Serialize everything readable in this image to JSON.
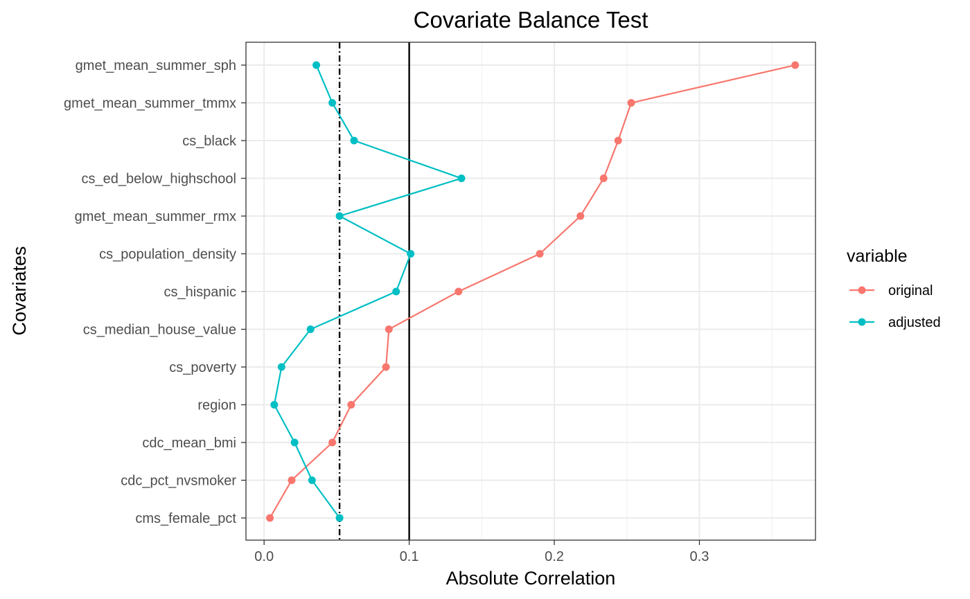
{
  "chart_data": {
    "type": "line",
    "title": "Covariate Balance Test",
    "xlabel": "Absolute Correlation",
    "ylabel": "Covariates",
    "xlim": [
      -0.0125,
      0.38
    ],
    "xticks": [
      0.0,
      0.1,
      0.2,
      0.3
    ],
    "xtick_labels": [
      "0.0",
      "0.1",
      "0.2",
      "0.3"
    ],
    "categories": [
      "gmet_mean_summer_sph",
      "gmet_mean_summer_tmmx",
      "cs_black",
      "cs_ed_below_highschool",
      "gmet_mean_summer_rmx",
      "cs_population_density",
      "cs_hispanic",
      "cs_median_house_value",
      "cs_poverty",
      "region",
      "cdc_mean_bmi",
      "cdc_pct_nvsmoker",
      "cms_female_pct"
    ],
    "series": [
      {
        "name": "original",
        "color": "#F8766D",
        "values": [
          0.366,
          0.253,
          0.244,
          0.234,
          0.218,
          0.19,
          0.134,
          0.086,
          0.084,
          0.06,
          0.047,
          0.019,
          0.004
        ]
      },
      {
        "name": "adjusted",
        "color": "#00BFC4",
        "values": [
          0.036,
          0.047,
          0.062,
          0.136,
          0.052,
          0.101,
          0.091,
          0.032,
          0.012,
          0.007,
          0.021,
          0.033,
          0.052
        ]
      }
    ],
    "reference_lines": [
      {
        "x": 0.1,
        "style": "solid"
      },
      {
        "x": 0.052,
        "style": "dotdash"
      }
    ],
    "legend": {
      "title": "variable",
      "position": "right"
    },
    "grid": true
  }
}
